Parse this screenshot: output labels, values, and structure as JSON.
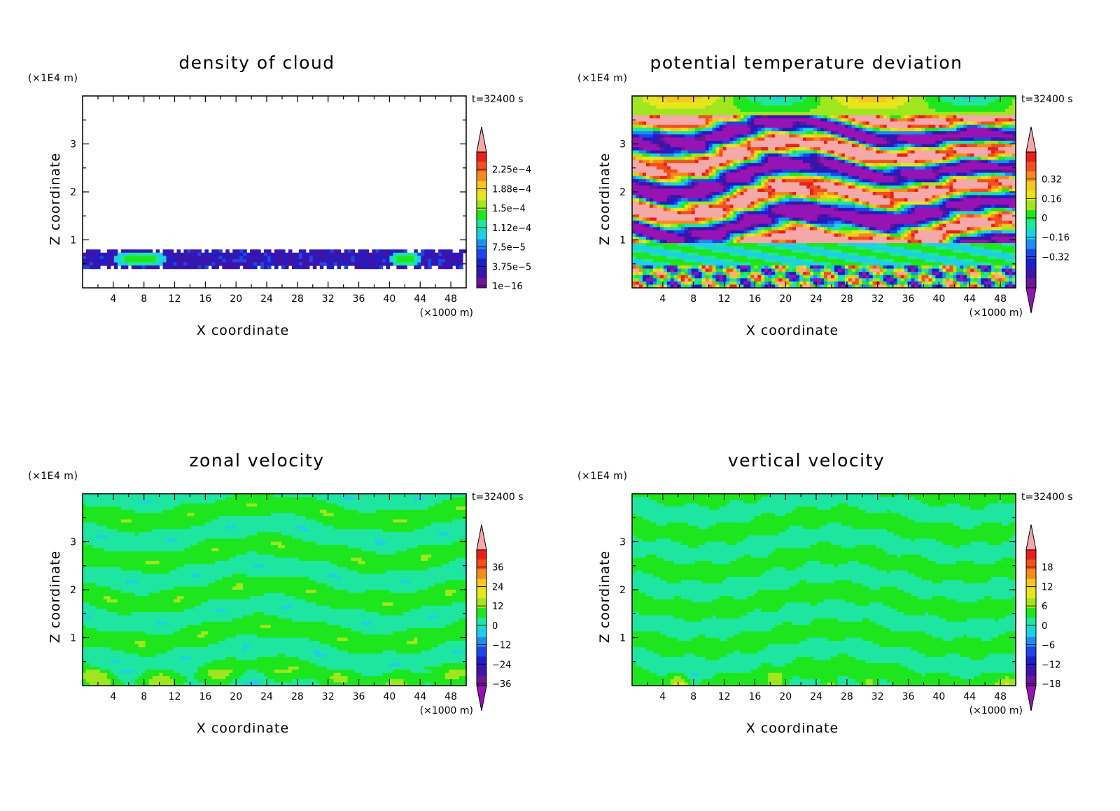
{
  "chart_data": [
    {
      "type": "heatmap",
      "title": "density of cloud",
      "time_label": "t=32400 s",
      "xlabel": "X coordinate",
      "ylabel": "Z coordinate",
      "x_unit": "(×1000 m)",
      "y_unit": "(×1E4 m)",
      "x_ticks": [
        "4",
        "8",
        "12",
        "16",
        "20",
        "24",
        "28",
        "32",
        "36",
        "40",
        "44",
        "48"
      ],
      "y_ticks": [
        "1",
        "2",
        "3"
      ],
      "xlim": [
        0,
        50
      ],
      "ylim": [
        0,
        4
      ],
      "colorbar_labels": [
        "2.25e−4",
        "1.88e−4",
        "1.5e−4",
        "1.12e−4",
        "7.5e−5",
        "3.75e−5",
        "1e−16"
      ],
      "field": "cloud",
      "features": {
        "cloud_layer_z": [
          0.4,
          0.78
        ],
        "dense_patches_x": [
          [
            4,
            11
          ],
          [
            40,
            44
          ]
        ],
        "max_level": "1.12e−4"
      }
    },
    {
      "type": "heatmap",
      "title": "potential temperature deviation",
      "time_label": "t=32400 s",
      "xlabel": "X coordinate",
      "ylabel": "Z coordinate",
      "x_unit": "(×1000 m)",
      "y_unit": "(×1E4 m)",
      "x_ticks": [
        "4",
        "8",
        "12",
        "16",
        "20",
        "24",
        "28",
        "32",
        "36",
        "40",
        "44",
        "48"
      ],
      "y_ticks": [
        "1",
        "2",
        "3"
      ],
      "xlim": [
        0,
        50
      ],
      "ylim": [
        0,
        4
      ],
      "colorbar_labels": [
        "0.32",
        "0.16",
        "0",
        "−0.16",
        "−0.32"
      ],
      "field": "theta",
      "features": {
        "range": [
          -0.4,
          0.4
        ],
        "layered_bands_z": [
          0.9,
          3.6
        ]
      }
    },
    {
      "type": "heatmap",
      "title": "zonal velocity",
      "time_label": "t=32400 s",
      "xlabel": "X coordinate",
      "ylabel": "Z coordinate",
      "x_unit": "(×1000 m)",
      "y_unit": "(×1E4 m)",
      "x_ticks": [
        "4",
        "8",
        "12",
        "16",
        "20",
        "24",
        "28",
        "32",
        "36",
        "40",
        "44",
        "48"
      ],
      "y_ticks": [
        "1",
        "2",
        "3"
      ],
      "xlim": [
        0,
        50
      ],
      "ylim": [
        0,
        4
      ],
      "colorbar_labels": [
        "36",
        "24",
        "12",
        "0",
        "−12",
        "−24",
        "−36"
      ],
      "field": "u",
      "features": {
        "dominant_range": [
          -6,
          6
        ]
      }
    },
    {
      "type": "heatmap",
      "title": "vertical velocity",
      "time_label": "t=32400 s",
      "xlabel": "X coordinate",
      "ylabel": "Z coordinate",
      "x_unit": "(×1000 m)",
      "y_unit": "(×1E4 m)",
      "x_ticks": [
        "4",
        "8",
        "12",
        "16",
        "20",
        "24",
        "28",
        "32",
        "36",
        "40",
        "44",
        "48"
      ],
      "y_ticks": [
        "1",
        "2",
        "3"
      ],
      "xlim": [
        0,
        50
      ],
      "ylim": [
        0,
        4
      ],
      "colorbar_labels": [
        "18",
        "12",
        "6",
        "0",
        "−6",
        "−12",
        "−18"
      ],
      "field": "w",
      "features": {
        "dominant_range": [
          -3,
          3
        ],
        "near_surface_updrafts_x": [
          6,
          19,
          26,
          31,
          49
        ]
      }
    }
  ],
  "colors": {
    "scale": [
      "#f5a8a8",
      "#e8201a",
      "#f0501e",
      "#f58a1e",
      "#f5c81e",
      "#e6e61e",
      "#a0e61e",
      "#1ee61e",
      "#1ee6a0",
      "#1ecfe6",
      "#1e8cf0",
      "#1e46e6",
      "#1e1ec8",
      "#3c14aa",
      "#6e1496",
      "#9614b4"
    ],
    "frame": "#000000",
    "background": "#ffffff"
  }
}
